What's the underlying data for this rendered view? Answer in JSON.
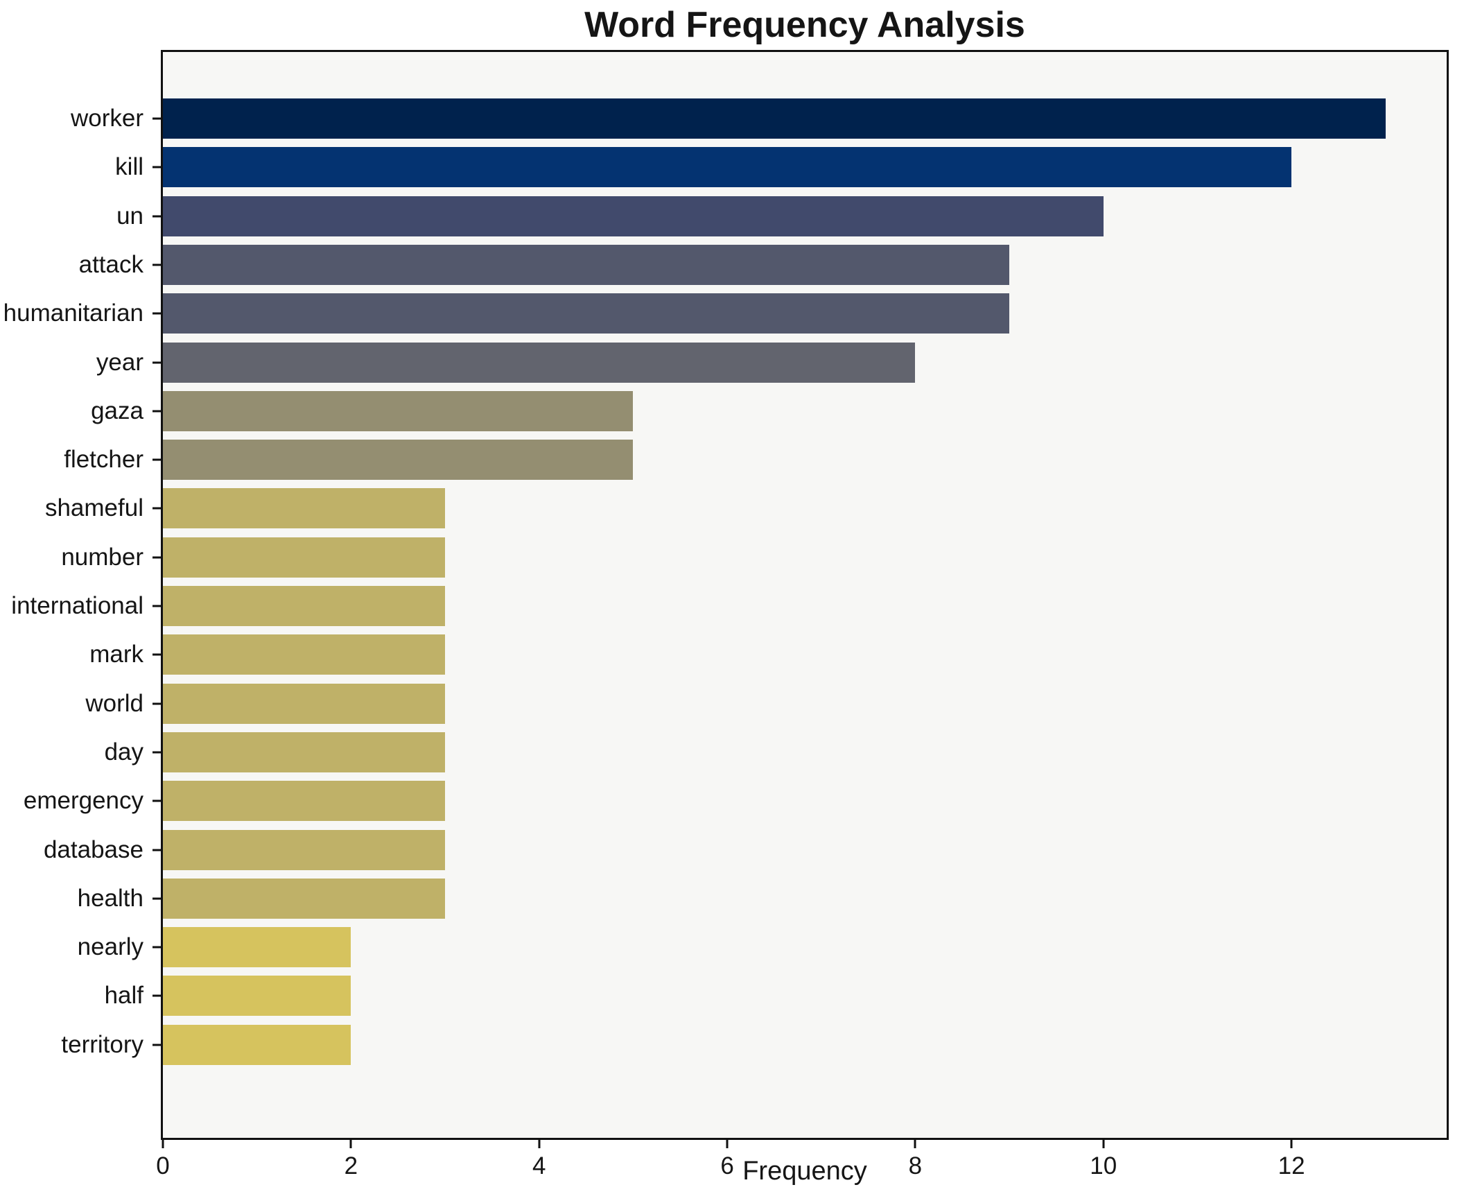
{
  "figure": {
    "background": "#ffffff"
  },
  "chart_data": {
    "type": "bar",
    "orientation": "horizontal",
    "title": "Word Frequency Analysis",
    "xlabel": "Frequency",
    "ylabel": "",
    "categories": [
      "worker",
      "kill",
      "un",
      "attack",
      "humanitarian",
      "year",
      "gaza",
      "fletcher",
      "shameful",
      "number",
      "international",
      "mark",
      "world",
      "day",
      "emergency",
      "database",
      "health",
      "nearly",
      "half",
      "territory"
    ],
    "values": [
      13,
      12,
      10,
      9,
      9,
      8,
      5,
      5,
      3,
      3,
      3,
      3,
      3,
      3,
      3,
      3,
      3,
      2,
      2,
      2
    ],
    "bar_colors": [
      "#00224d",
      "#043371",
      "#414a6c",
      "#53586c",
      "#53586c",
      "#62646e",
      "#948e71",
      "#948e71",
      "#bfb168",
      "#bfb168",
      "#bfb168",
      "#bfb168",
      "#bfb168",
      "#bfb168",
      "#bfb168",
      "#bfb168",
      "#bfb168",
      "#d6c35e",
      "#d6c35e",
      "#d6c35e"
    ],
    "xticks": [
      0,
      2,
      4,
      6,
      8,
      10,
      12
    ],
    "xlim": [
      0,
      13.65
    ],
    "grid": false,
    "legend": null,
    "plot_bg": "#f7f7f5",
    "spine_color": "#111111",
    "text_color": "#151515"
  }
}
